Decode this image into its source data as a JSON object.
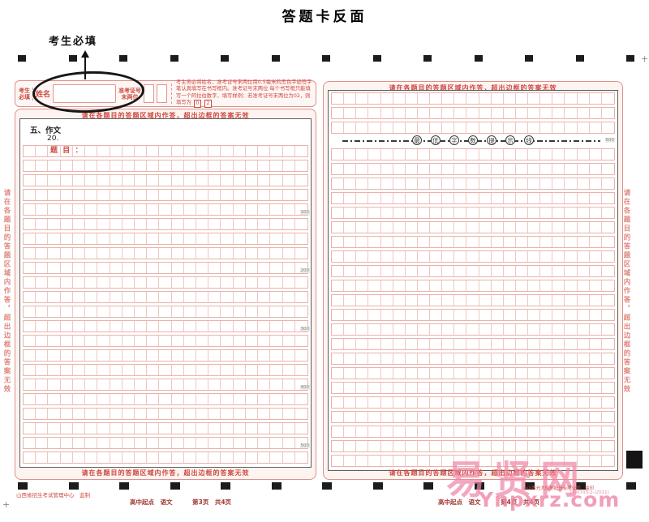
{
  "page": {
    "title": "答题卡反面",
    "annotation_label": "考生必填",
    "corner_mark": "+"
  },
  "colors": {
    "frame_pink": "#dd9189",
    "text_red": "#cc4b40",
    "grid_line": "#f2c6c1",
    "panel_bg": "#fdf3f1",
    "mark_black": "#1c1c1c",
    "watermark_pink": "#ee87a8",
    "footer_dark_red": "#a03830"
  },
  "header_strip": {
    "left_label": "考生\n必填",
    "name_label": "姓名",
    "ticket_label": "准考证号\n末两位",
    "instructions_line1": "考生务必将姓名、准考证号末两位用0.5毫米的黑色字迹签字笔认真填写在书写框内。准考证号末两位",
    "instructions_line2": "每个书写框只能填写一个阿拉伯数字，填写样例：若准考证号末两位为02，则填写为",
    "sample_digits": [
      "0",
      "2"
    ]
  },
  "panels": {
    "warning": "请在各题目的答题区域内作答，超出边框的答案无效",
    "left": {
      "section_title": "五、作文",
      "question_number": "20.",
      "grid": {
        "columns": 23,
        "rows": 22,
        "special_cells": {
          "0": {
            "2": "题",
            "3": "目",
            "4": "："
          }
        },
        "count_markers": [
          {
            "label": "100",
            "after_row": 5
          },
          {
            "label": "200",
            "after_row": 9
          },
          {
            "label": "300",
            "after_row": 13
          },
          {
            "label": "400",
            "after_row": 17
          },
          {
            "label": "500",
            "after_row": 21
          }
        ]
      }
    },
    "right": {
      "grid": {
        "columns": 23,
        "rows_above_line": 3,
        "rows_below_line": 22,
        "min_line_chars": [
          "最",
          "低",
          "字",
          "数",
          "提",
          "示",
          "线"
        ],
        "min_line_marker": "600"
      }
    }
  },
  "side_text": "请在各题目的答题区域内作答，超出边框的答案无效",
  "timing_marks": {
    "top_count": 13,
    "bottom_count": 13
  },
  "footer": {
    "publisher": "山西省招生考试管理中心　监制",
    "left_course": "高中起点　语文",
    "left_page": "第3页　共4页",
    "right_course": "高中起点　语文",
    "right_page": "第4页　共4页",
    "printer": "◎山西光大印刷股份有限公司　监印",
    "print_code": "14-0703-2-(2011)"
  },
  "watermark": {
    "name": "易贤网",
    "url": "Ynpxrz.com"
  }
}
